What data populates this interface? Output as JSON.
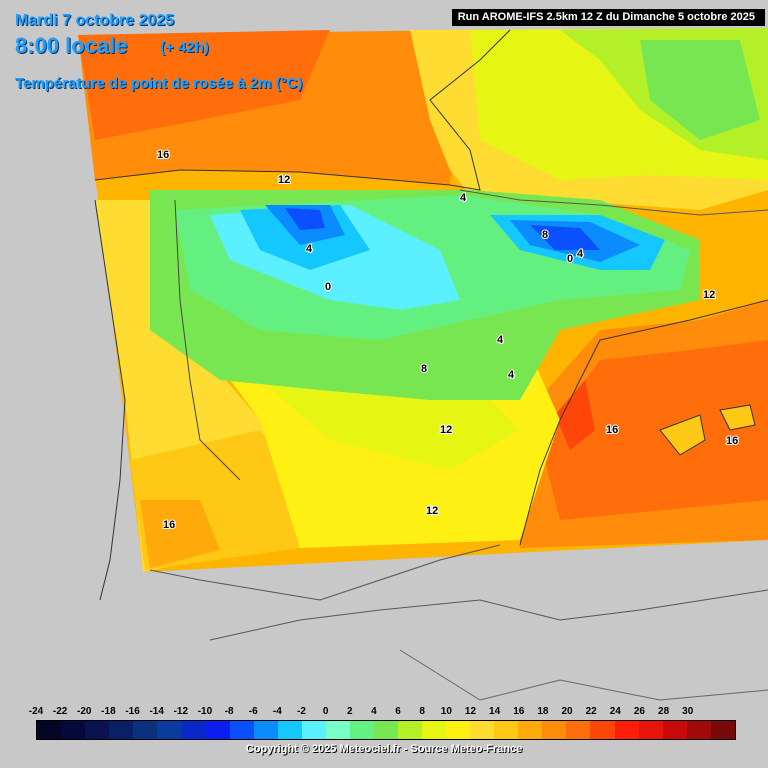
{
  "header": {
    "date": "Mardi 7 octobre 2025",
    "time": "8:00 locale",
    "lead": "(+ 42h)",
    "variable": "Température de point de rosée à 2m (°C)"
  },
  "run_info": "Run AROME-IFS 2.5km 12 Z du Dimanche 5 octobre 2025",
  "legend": {
    "ticks": [
      "-24",
      "-22",
      "-20",
      "-18",
      "-16",
      "-14",
      "-12",
      "-10",
      "-8",
      "-6",
      "-4",
      "-2",
      "0",
      "2",
      "4",
      "6",
      "8",
      "10",
      "12",
      "14",
      "16",
      "18",
      "20",
      "22",
      "24",
      "26",
      "28",
      "30"
    ],
    "colors": [
      "#050528",
      "#06083c",
      "#0a1250",
      "#0a2066",
      "#0a307e",
      "#0a3ca0",
      "#0a28c8",
      "#0a1ef0",
      "#0a50ff",
      "#0a8cff",
      "#14c8ff",
      "#5af0ff",
      "#78ffc8",
      "#64f080",
      "#78e650",
      "#b4f028",
      "#e6f514",
      "#fff014",
      "#ffdc32",
      "#ffc814",
      "#ffaa0a",
      "#ff8c0a",
      "#ff6e0a",
      "#ff460a",
      "#ff1e0a",
      "#e6140a",
      "#c80a0a",
      "#a00a0a",
      "#780a0a"
    ]
  },
  "contour_labels": [
    "16",
    "12",
    "4",
    "4",
    "8",
    "0",
    "4",
    "0",
    "12",
    "4",
    "4",
    "8",
    "12",
    "16",
    "16",
    "16",
    "12"
  ],
  "copyright": "Copyright © 2025 Meteociel.fr - Source Meteo-France",
  "colors": {
    "land_outside": "#c8c8c8",
    "title_blue": "#1ea0ff"
  }
}
